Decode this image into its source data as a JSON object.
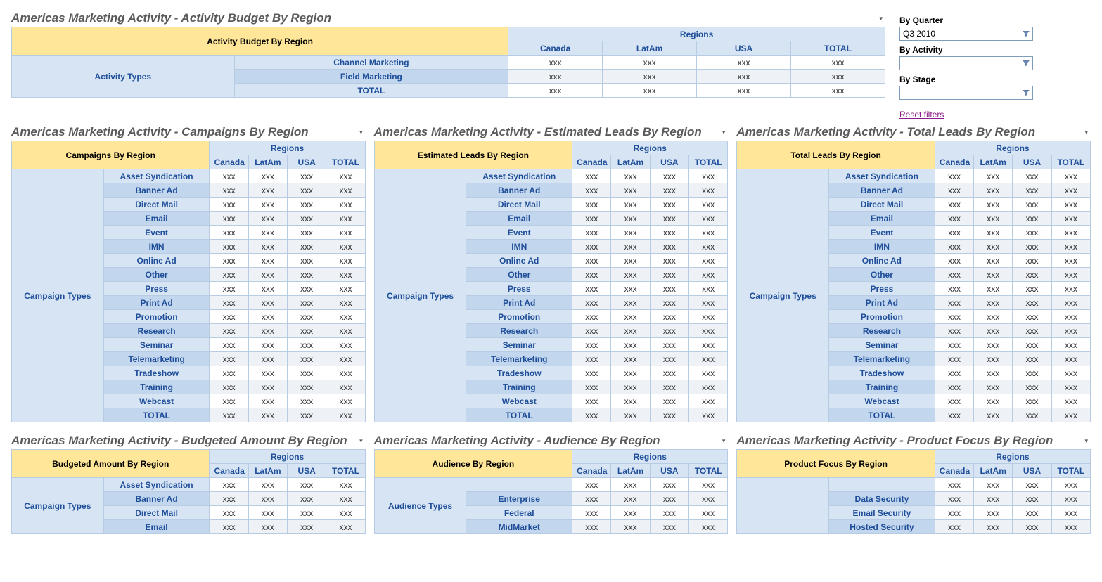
{
  "colors": {
    "corner_bg": "#ffe699",
    "header_bg": "#d6e4f4",
    "header_bg_alt": "#c2d6ee",
    "header_fg": "#1f4e99",
    "border": "#b7cce2",
    "data_alt0": "#ffffff",
    "data_alt1": "#eef2f7",
    "title_fg": "#5a5a5a",
    "link_fg": "#8b1a89"
  },
  "placeholder": "xxx",
  "regions": [
    "Canada",
    "LatAm",
    "USA",
    "TOTAL"
  ],
  "regions_group_label": "Regions",
  "campaign_types_label": "Campaign Types",
  "campaign_types": [
    "Asset Syndication",
    "Banner Ad",
    "Direct Mail",
    "Email",
    "Event",
    "IMN",
    "Online Ad",
    "Other",
    "Press",
    "Print Ad",
    "Promotion",
    "Research",
    "Seminar",
    "Telemarketing",
    "Tradeshow",
    "Training",
    "Webcast",
    "TOTAL"
  ],
  "activity_budget": {
    "title": "Americas Marketing Activity - Activity Budget By Region",
    "corner": "Activity Budget By Region",
    "row_group_label": "Activity Types",
    "rows": [
      "Channel Marketing",
      "Field Marketing",
      "TOTAL"
    ]
  },
  "campaigns": {
    "title": "Americas Marketing Activity - Campaigns By Region",
    "corner": "Campaigns By Region"
  },
  "est_leads": {
    "title": "Americas Marketing Activity - Estimated Leads By Region",
    "corner": "Estimated Leads By Region"
  },
  "total_leads": {
    "title": "Americas Marketing Activity - Total Leads By Region",
    "corner": "Total Leads By Region"
  },
  "budgeted": {
    "title": "Americas Marketing Activity - Budgeted Amount By Region",
    "corner": "Budgeted Amount By Region",
    "rows": [
      "Asset Syndication",
      "Banner Ad",
      "Direct Mail",
      "Email"
    ]
  },
  "audience": {
    "title": "Americas Marketing Activity - Audience By Region",
    "corner": "Audience By Region",
    "row_group_label": "Audience Types",
    "rows": [
      "",
      "Enterprise",
      "Federal",
      "MidMarket"
    ]
  },
  "product_focus": {
    "title": "Americas Marketing Activity - Product Focus By Region",
    "corner": "Product Focus By Region",
    "rows": [
      "",
      "Data Security",
      "Email Security",
      "Hosted Security"
    ]
  },
  "filters": {
    "by_quarter_label": "By Quarter",
    "by_quarter_value": "Q3 2010",
    "by_activity_label": "By Activity",
    "by_activity_value": "",
    "by_stage_label": "By Stage",
    "by_stage_value": "",
    "reset_label": "Reset filters"
  }
}
